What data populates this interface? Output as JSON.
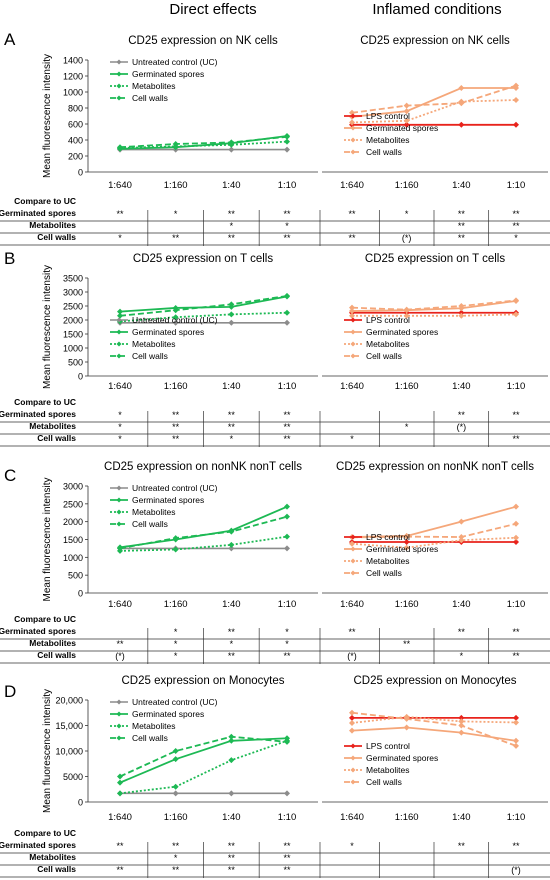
{
  "figure": {
    "column_titles": [
      "Direct effects",
      "Inflamed conditions"
    ],
    "compare_header": "Compare to UC",
    "comparison_rows": [
      "Germinated spores",
      "Metabolites",
      "Cell walls"
    ],
    "x_categories": [
      "1:640",
      "1:160",
      "1:40",
      "1:10"
    ],
    "ylabel": "Mean fluorescence intensity",
    "colors": {
      "uc": "#8c8c8c",
      "lps": "#e8231c",
      "direct": "#1db954",
      "inflamed": "#f5a77a"
    }
  },
  "chart_data": [
    {
      "panel": "A",
      "column": "Direct effects",
      "type": "line",
      "title": "CD25 expression on NK cells",
      "categories": [
        "1:640",
        "1:160",
        "1:40",
        "1:10"
      ],
      "ylim": [
        0,
        1400
      ],
      "yticks": [
        0,
        200,
        400,
        600,
        800,
        1000,
        1200,
        1400
      ],
      "ylabel": "Mean fluorescence intensity",
      "legend": "top-left",
      "series": [
        {
          "name": "Untreated control (UC)",
          "style": "uc",
          "values": [
            280,
            280,
            280,
            280
          ]
        },
        {
          "name": "Germinated spores",
          "style": "solid",
          "values": [
            290,
            310,
            360,
            450
          ]
        },
        {
          "name": "Metabolites",
          "style": "dotted",
          "values": [
            300,
            320,
            340,
            380
          ]
        },
        {
          "name": "Cell walls",
          "style": "dashed",
          "values": [
            310,
            350,
            370,
            440
          ]
        }
      ],
      "significance": [
        [
          "**",
          "*",
          "**",
          "**"
        ],
        [
          "",
          "",
          "*",
          "*"
        ],
        [
          "*",
          "**",
          "**",
          "**"
        ]
      ]
    },
    {
      "panel": "",
      "column": "Inflamed conditions",
      "type": "line",
      "title": "CD25 expression on NK cells",
      "categories": [
        "1:640",
        "1:160",
        "1:40",
        "1:10"
      ],
      "ylim": [
        0,
        1400
      ],
      "legend": "bottom-left",
      "series": [
        {
          "name": "LPS control",
          "style": "lps",
          "values": [
            590,
            590,
            590,
            590
          ]
        },
        {
          "name": "Germinated spores",
          "style": "solid",
          "values": [
            690,
            760,
            1050,
            1050
          ]
        },
        {
          "name": "Metabolites",
          "style": "dotted",
          "values": [
            620,
            640,
            880,
            900
          ]
        },
        {
          "name": "Cell walls",
          "style": "dashed",
          "values": [
            740,
            830,
            860,
            1080
          ]
        }
      ],
      "significance": [
        [
          "**",
          "*",
          "**",
          "**"
        ],
        [
          "",
          "",
          "**",
          "**"
        ],
        [
          "**",
          "(*)",
          "**",
          "*"
        ]
      ]
    },
    {
      "panel": "B",
      "column": "Direct effects",
      "type": "line",
      "title": "CD25 expression on T cells",
      "categories": [
        "1:640",
        "1:160",
        "1:40",
        "1:10"
      ],
      "ylim": [
        0,
        3500
      ],
      "yticks": [
        0,
        500,
        1000,
        1500,
        2000,
        2500,
        3000,
        3500
      ],
      "ylabel": "Mean fluorescence intensity",
      "legend": "bottom-left",
      "series": [
        {
          "name": "Untreated control (UC)",
          "style": "uc",
          "values": [
            1900,
            1900,
            1900,
            1900
          ]
        },
        {
          "name": "Germinated spores",
          "style": "solid",
          "values": [
            2300,
            2430,
            2470,
            2840
          ]
        },
        {
          "name": "Metabolites",
          "style": "dotted",
          "values": [
            1950,
            2100,
            2200,
            2260
          ]
        },
        {
          "name": "Cell walls",
          "style": "dashed",
          "values": [
            2150,
            2350,
            2560,
            2860
          ]
        }
      ],
      "significance": [
        [
          "*",
          "**",
          "**",
          "**"
        ],
        [
          "*",
          "**",
          "**",
          "**"
        ],
        [
          "*",
          "**",
          "*",
          "**"
        ]
      ]
    },
    {
      "panel": "",
      "column": "Inflamed conditions",
      "type": "line",
      "title": "CD25 expression on T cells",
      "categories": [
        "1:640",
        "1:160",
        "1:40",
        "1:10"
      ],
      "ylim": [
        0,
        3500
      ],
      "legend": "bottom-left",
      "series": [
        {
          "name": "LPS control",
          "style": "lps",
          "values": [
            2260,
            2260,
            2260,
            2260
          ]
        },
        {
          "name": "Germinated spores",
          "style": "solid",
          "values": [
            2320,
            2350,
            2420,
            2680
          ]
        },
        {
          "name": "Metabolites",
          "style": "dotted",
          "values": [
            2150,
            2150,
            2150,
            2200
          ]
        },
        {
          "name": "Cell walls",
          "style": "dashed",
          "values": [
            2440,
            2370,
            2500,
            2700
          ]
        }
      ],
      "significance": [
        [
          "",
          "",
          "**",
          "**"
        ],
        [
          "",
          "*",
          "(*)",
          ""
        ],
        [
          "*",
          "",
          "",
          "**"
        ]
      ]
    },
    {
      "panel": "C",
      "column": "Direct effects",
      "type": "line",
      "title": "CD25 expression on nonNK nonT cells",
      "categories": [
        "1:640",
        "1:160",
        "1:40",
        "1:10"
      ],
      "ylim": [
        0,
        3000
      ],
      "yticks": [
        0,
        500,
        1000,
        1500,
        2000,
        2500,
        3000
      ],
      "ylabel": "Mean fluorescence intensity",
      "legend": "top-left",
      "series": [
        {
          "name": "Untreated control (UC)",
          "style": "uc",
          "values": [
            1250,
            1250,
            1250,
            1250
          ]
        },
        {
          "name": "Germinated spores",
          "style": "solid",
          "values": [
            1280,
            1500,
            1750,
            2420
          ]
        },
        {
          "name": "Metabolites",
          "style": "dotted",
          "values": [
            1180,
            1220,
            1350,
            1580
          ]
        },
        {
          "name": "Cell walls",
          "style": "dashed",
          "values": [
            1250,
            1540,
            1720,
            2140
          ]
        }
      ],
      "significance": [
        [
          "",
          "*",
          "**",
          "*"
        ],
        [
          "**",
          "*",
          "*",
          "*"
        ],
        [
          "(*)",
          "*",
          "**",
          "**"
        ]
      ]
    },
    {
      "panel": "",
      "column": "Inflamed conditions",
      "type": "line",
      "title": "CD25 expression on nonNK nonT cells",
      "categories": [
        "1:640",
        "1:160",
        "1:40",
        "1:10"
      ],
      "ylim": [
        0,
        3000
      ],
      "legend": "bottom-left",
      "series": [
        {
          "name": "LPS control",
          "style": "lps",
          "values": [
            1430,
            1430,
            1430,
            1430
          ]
        },
        {
          "name": "Germinated spores",
          "style": "solid",
          "values": [
            1570,
            1600,
            2000,
            2420
          ]
        },
        {
          "name": "Metabolites",
          "style": "dotted",
          "values": [
            1380,
            1270,
            1480,
            1550
          ]
        },
        {
          "name": "Cell walls",
          "style": "dashed",
          "values": [
            1560,
            1580,
            1570,
            1940
          ]
        }
      ],
      "significance": [
        [
          "**",
          "",
          "**",
          "**"
        ],
        [
          "",
          "**",
          "",
          ""
        ],
        [
          "(*)",
          "",
          "*",
          "**"
        ]
      ]
    },
    {
      "panel": "D",
      "column": "Direct effects",
      "type": "line",
      "title": "CD25 expression on Monocytes",
      "categories": [
        "1:640",
        "1:160",
        "1:40",
        "1:10"
      ],
      "ylim": [
        0,
        20000
      ],
      "yticks": [
        0,
        5000,
        10000,
        15000,
        20000
      ],
      "ytick_labels": [
        "0",
        "5000",
        "10,000",
        "15,000",
        "20,000"
      ],
      "ylabel": "Mean fluorescence intensity",
      "legend": "top-left",
      "series": [
        {
          "name": "Untreated control (UC)",
          "style": "uc",
          "values": [
            1700,
            1700,
            1700,
            1700
          ]
        },
        {
          "name": "Germinated spores",
          "style": "solid",
          "values": [
            3800,
            8400,
            12000,
            12500
          ]
        },
        {
          "name": "Metabolites",
          "style": "dotted",
          "values": [
            1700,
            3000,
            8200,
            12000
          ]
        },
        {
          "name": "Cell walls",
          "style": "dashed",
          "values": [
            5000,
            10000,
            12800,
            11800
          ]
        }
      ],
      "significance": [
        [
          "**",
          "**",
          "**",
          "**"
        ],
        [
          "",
          "*",
          "**",
          "**"
        ],
        [
          "**",
          "**",
          "**",
          "**"
        ]
      ]
    },
    {
      "panel": "",
      "column": "Inflamed conditions",
      "type": "line",
      "title": "CD25 expression on Monocytes",
      "categories": [
        "1:640",
        "1:160",
        "1:40",
        "1:10"
      ],
      "ylim": [
        0,
        20000
      ],
      "legend": "bottom-left",
      "series": [
        {
          "name": "LPS control",
          "style": "lps",
          "values": [
            16500,
            16500,
            16500,
            16500
          ]
        },
        {
          "name": "Germinated spores",
          "style": "solid",
          "values": [
            14000,
            14600,
            13600,
            12000
          ]
        },
        {
          "name": "Metabolites",
          "style": "dotted",
          "values": [
            15500,
            16700,
            15800,
            15600
          ]
        },
        {
          "name": "Cell walls",
          "style": "dashed",
          "values": [
            17500,
            16300,
            15000,
            11000
          ]
        }
      ],
      "significance": [
        [
          "*",
          "",
          "**",
          "**"
        ],
        [
          "",
          "",
          "",
          ""
        ],
        [
          "",
          "",
          "",
          "(*)"
        ]
      ]
    }
  ]
}
